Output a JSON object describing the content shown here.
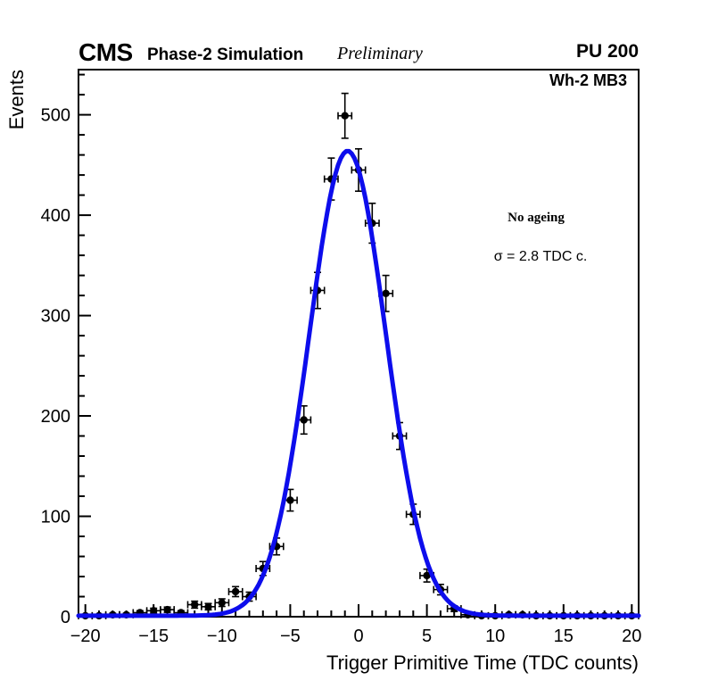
{
  "header": {
    "experiment": "CMS",
    "subtitle": "Phase-2 Simulation",
    "preliminary": "Preliminary",
    "pileup": "PU 200"
  },
  "plot": {
    "region_label": "Wh-2 MB3",
    "annotation_line1": "No ageing",
    "annotation_line2": "σ = 2.8 TDC c."
  },
  "colors": {
    "fit_curve": "#0d0dec",
    "marker": "#000000",
    "frame": "#000000",
    "background": "#ffffff"
  },
  "chart_data": {
    "type": "scatter",
    "title": "",
    "xlabel": "Trigger Primitive Time (TDC counts)",
    "ylabel": "Events",
    "xlim": [
      -20.5,
      20.5
    ],
    "ylim": [
      0,
      545
    ],
    "grid": false,
    "legend_position": "none",
    "x_major_ticks": [
      -20,
      -15,
      -10,
      -5,
      0,
      5,
      10,
      15,
      20
    ],
    "x_tick_labels": [
      "−20",
      "−15",
      "−10",
      "−5",
      "0",
      "5",
      "10",
      "15",
      "20"
    ],
    "x_minor_step": 1,
    "y_major_ticks": [
      0,
      100,
      200,
      300,
      400,
      500
    ],
    "y_tick_labels": [
      "0",
      "100",
      "200",
      "300",
      "400",
      "500"
    ],
    "y_minor_step": 20,
    "y_minor_max": 540,
    "series": [
      {
        "name": "data-points",
        "type": "scatter",
        "marker": "filled-circle",
        "color": "#000000",
        "x_error": 0.5,
        "y_error": "sqrt",
        "x": [
          -20,
          -19,
          -18,
          -17,
          -16,
          -15,
          -14,
          -13,
          -12,
          -11,
          -10,
          -9,
          -8,
          -7,
          -6,
          -5,
          -4,
          -3,
          -2,
          -1,
          0,
          1,
          2,
          3,
          4,
          5,
          6,
          7,
          8,
          9,
          10,
          11,
          12,
          13,
          14,
          15,
          16,
          17,
          18,
          19,
          20
        ],
        "y": [
          1,
          1,
          2,
          2,
          4,
          6,
          7,
          4,
          12,
          10,
          14,
          25,
          20,
          48,
          70,
          116,
          196,
          325,
          436,
          499,
          445,
          392,
          322,
          180,
          102,
          41,
          27,
          8,
          2,
          1,
          1,
          2,
          2,
          1,
          1,
          1,
          1,
          1,
          1,
          1,
          1
        ]
      },
      {
        "name": "gaussian-fit",
        "type": "line",
        "color": "#0d0dec",
        "width": 5,
        "amplitude": 463,
        "mean": -0.8,
        "sigma": 2.8,
        "baseline": 1
      }
    ]
  }
}
